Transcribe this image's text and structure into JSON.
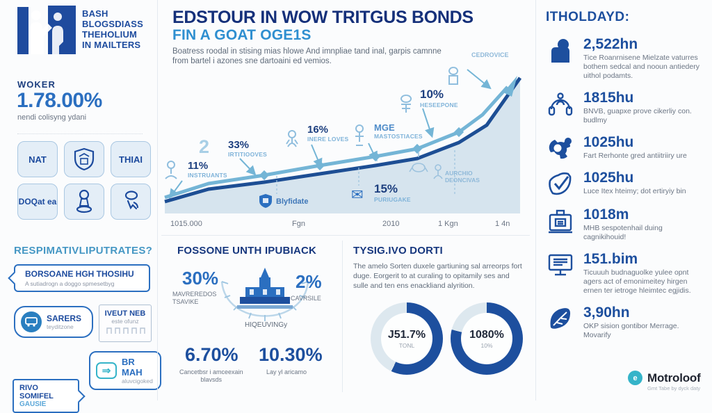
{
  "brand": {
    "line1": "BASH",
    "line2": "BLOGSDIASS",
    "line3": "THEHOLIUM",
    "line4": "IN MAILTERS"
  },
  "left": {
    "stat_label": "WOKER",
    "stat_value": "1.78.00%",
    "stat_caption": "nendi colisyng ydani",
    "grid": {
      "cell1": "NAT",
      "cell3": "THIAI",
      "cell4": "DOQat ea"
    },
    "section2": {
      "heading": "RESPIMATIVLIPUTRATES?",
      "callout_title": "BORSOANE HGH THOSIHU",
      "callout_sub": "A sutiadrogn a doggo spmesetbyg",
      "box1_label": "SARERS",
      "box1_cap": "teyditzone",
      "box2_label": "IVEUT NEB",
      "box2_cap": "este ofunz",
      "box3_line1": "RIVO",
      "box3_line2": "SOMIFEL",
      "box3_line3": "GAUSIE",
      "box4_label": "BR MAH",
      "box4_cap": "aluvcigoked"
    }
  },
  "center": {
    "title": "EDSTOUR IN WOW TRITGUS BONDS",
    "subtitle": "FIN A GOAT OGE1S",
    "body": "Boatress roodal in stising mias hlowe And imnpliae tand inal, garpis camnne from bartel i azones sne dartoaini ed vemios.",
    "chart_data": {
      "type": "area",
      "x_labels": [
        "1015.000",
        "Fgn",
        "2010",
        "1 Kgn",
        "1 4n"
      ],
      "series": [
        {
          "name": "dark-line",
          "color": "#1d4e94",
          "points": [
            [
              5,
              195
            ],
            [
              68,
              177
            ],
            [
              148,
              167
            ],
            [
              228,
              155
            ],
            [
              308,
              143
            ],
            [
              368,
              133
            ],
            [
              428,
              110
            ],
            [
              468,
              85
            ],
            [
              516,
              17
            ]
          ]
        },
        {
          "name": "light-line",
          "color": "#74b5d6",
          "points": [
            [
              5,
              189
            ],
            [
              68,
              169
            ],
            [
              148,
              157
            ],
            [
              228,
              143
            ],
            [
              308,
              130
            ],
            [
              368,
              119
            ],
            [
              428,
              95
            ],
            [
              462,
              70
            ],
            [
              498,
              30
            ]
          ]
        }
      ],
      "area_fill": "#d6e4ee",
      "annotations": {
        "a1_val": "11%",
        "a1_lab": "INSTRUANTS",
        "a2_big": "2",
        "a2_val": "33%",
        "a2_lab": "IRTITIOOVES",
        "a3_val": "16%",
        "a3_lab": "INERE LOVES",
        "a4_val": "MGE",
        "a4_lab": "MASTOSTIACES",
        "a5_val": "10%",
        "a5_lab": "HESEEPONE",
        "a6_lab": "CEDROVICE",
        "a7_icon": "✉",
        "a7_val": "15%",
        "a7_lab": "PURIUGAKE",
        "a8_lab": "Blyfidate",
        "a9_lab1": "AURCHIO",
        "a9_lab2": "DEONCIVAS"
      }
    }
  },
  "fossone": {
    "heading": "FOSSONE UNTH IPUBIACK",
    "left_pct": "30%",
    "left_cap1": "MAVREREDOS",
    "left_cap2": "TSAVIKE",
    "gauge_label": "HIQEUVINGy",
    "right_pct": "2%",
    "right_cap": "CAVRSILE",
    "stat1_val": "6.70%",
    "stat1_cap1": "Cancetbsr i amceexain",
    "stat1_cap2": "blavsds",
    "stat2_val": "10.30%",
    "stat2_cap": "Lay yl aricamo"
  },
  "tysig": {
    "heading": "TYSIG.IVO DORTI",
    "body": "The amelo Sorten duxele gartiuning sal arreorps fort duge. Eorgerit to at curaling to opitamily ses and sulle and ten ens enackliand alyrition.",
    "donuts": [
      {
        "label": "J51.7%",
        "sub": "TONL",
        "fill_pct": 57,
        "color": "#1d4f9e"
      },
      {
        "label": "1080%",
        "sub": "10%",
        "fill_pct": 79,
        "color": "#1d4f9e"
      }
    ]
  },
  "right": {
    "heading": "ITHOLDAYD:",
    "items": [
      {
        "icon": "rock-icon",
        "value": "2,522hn",
        "desc": "Tice Roanrnisene Mielzate vaturres bothem sedcal and nooun antiedery uithol podamts."
      },
      {
        "icon": "headphones-icon",
        "value": "1815hu",
        "desc": "BNVB, guapxe prove cikerliy con. budlmy"
      },
      {
        "icon": "gear-icon",
        "value": "1025hu",
        "desc": "Fart Rerhonte gred antiitriiry ure"
      },
      {
        "icon": "shield-check-icon",
        "value": "1025hu",
        "desc": "Luce Itex hteimy; dot ertiryiy bin"
      },
      {
        "icon": "badge-icon",
        "value": "1018m",
        "desc": "MHB sespotenhail duing cagnikihouid!"
      },
      {
        "icon": "monitor-icon",
        "value": "151.bim",
        "desc": "Ticuuuh budnaguolke yulee opnt agers act of emonimeitey hirgen ernen ter ietroge hleimtec egjidis."
      },
      {
        "icon": "leaf-icon",
        "value": "3,90hn",
        "desc": "OKP sision gontibor Merrage. Movarify"
      }
    ],
    "footer_initial": "e",
    "footer_name": "Motroloof",
    "footer_caption": "Gmt Tabe by dyck daty"
  }
}
